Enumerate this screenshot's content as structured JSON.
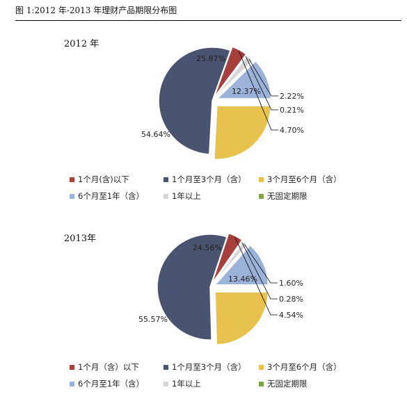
{
  "page": {
    "title": "图 1:2012 年-2013 年理财产品期限分布图"
  },
  "colors": {
    "lt1m": "#a6403d",
    "m1to3": "#4a5470",
    "m3to6": "#e8c24e",
    "m6to1y": "#9bb3d9",
    "gt1y": "#d6d6d6",
    "nofixed": "#7fa24a"
  },
  "chart_data": [
    {
      "type": "pie",
      "title": "2012 年",
      "slices": [
        {
          "key": "m6to1y",
          "label": "6个月至1年（含）",
          "value": 12.37,
          "value_label": "12.37%"
        },
        {
          "key": "gt1y",
          "label": "1年以上",
          "value": 2.22,
          "value_label": "2.22%"
        },
        {
          "key": "nofixed",
          "label": "无固定期限",
          "value": 0.21,
          "value_label": "0.21%"
        },
        {
          "key": "lt1m",
          "label": "1个月(含)以下",
          "value": 4.7,
          "value_label": "4.70%"
        },
        {
          "key": "m1to3",
          "label": "1个月至3个月（含）",
          "value": 54.64,
          "value_label": "54.64%"
        },
        {
          "key": "m3to6",
          "label": "3个月至6个月（含）",
          "value": 25.87,
          "value_label": "25.87%"
        }
      ],
      "legend": [
        "1个月(含)以下",
        "1个月至3个月（含）",
        "3个月至6个月（含）",
        "6个月至1年（含）",
        "1年以上",
        "无固定期限"
      ],
      "legend_placement": "bottom"
    },
    {
      "type": "pie",
      "title": "2013年",
      "slices": [
        {
          "key": "m6to1y",
          "label": "6个月至1年（含）",
          "value": 13.46,
          "value_label": "13.46%"
        },
        {
          "key": "gt1y",
          "label": "1年以上",
          "value": 1.6,
          "value_label": "1.60%"
        },
        {
          "key": "nofixed",
          "label": "无固定期限",
          "value": 0.28,
          "value_label": "0.28%"
        },
        {
          "key": "lt1m",
          "label": "1个月（含）以下",
          "value": 4.54,
          "value_label": "4.54%"
        },
        {
          "key": "m1to3",
          "label": "1个月至3个月（含）",
          "value": 55.57,
          "value_label": "55.57%"
        },
        {
          "key": "m3to6",
          "label": "3个月至6个月（含）",
          "value": 24.56,
          "value_label": "24.56%"
        }
      ],
      "legend": [
        "1个月（含）以下",
        "1个月至3个月（含）",
        "3个月至6个月（含）",
        "6个月至1年（含）",
        "1年以上",
        "无固定期限"
      ],
      "legend_placement": "bottom"
    }
  ]
}
